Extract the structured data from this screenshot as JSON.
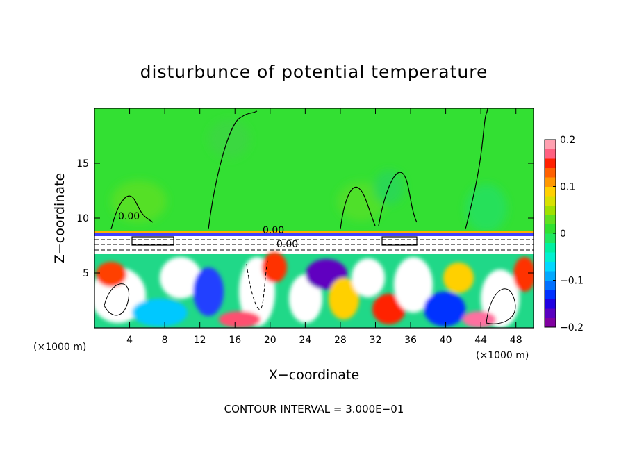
{
  "chart_data": {
    "type": "heatmap",
    "title": "disturbunce of potential temperature",
    "xlabel": "X−coordinate",
    "ylabel": "Z−coordinate",
    "x_unit_label_left": "(×1000 m)",
    "x_unit_label_right": "(×1000 m)",
    "xlim": [
      0,
      50
    ],
    "ylim": [
      0,
      20
    ],
    "x_ticks": [
      4,
      8,
      12,
      16,
      20,
      24,
      28,
      32,
      36,
      40,
      44,
      48
    ],
    "x_tick_labels": [
      "4",
      "8",
      "12",
      "16",
      "20",
      "24",
      "28",
      "32",
      "36",
      "40",
      "44",
      "48"
    ],
    "y_ticks": [
      5,
      10,
      15
    ],
    "y_tick_labels": [
      "5",
      "10",
      "15"
    ],
    "colorbar": {
      "range": [
        -0.2,
        0.2
      ],
      "tick_values": [
        0.2,
        0.1,
        0,
        -0.1,
        -0.2
      ],
      "tick_labels": [
        "0.2",
        "0.1",
        "0",
        "−0.1",
        "−0.2"
      ],
      "colors": [
        "#8000a0",
        "#5a00c0",
        "#2000e0",
        "#0030ff",
        "#0070ff",
        "#00a8ff",
        "#00d8ff",
        "#00f0d0",
        "#00f0a0",
        "#20e860",
        "#30e030",
        "#60e020",
        "#a0e000",
        "#d8e000",
        "#ffd000",
        "#ff9800",
        "#ff6000",
        "#ff2000",
        "#ff6080",
        "#ffa0b0"
      ]
    },
    "contour_labels": [
      "0.00",
      "0.00",
      "0.00"
    ],
    "footer": "CONTOUR INTERVAL = 3.000E−01"
  }
}
